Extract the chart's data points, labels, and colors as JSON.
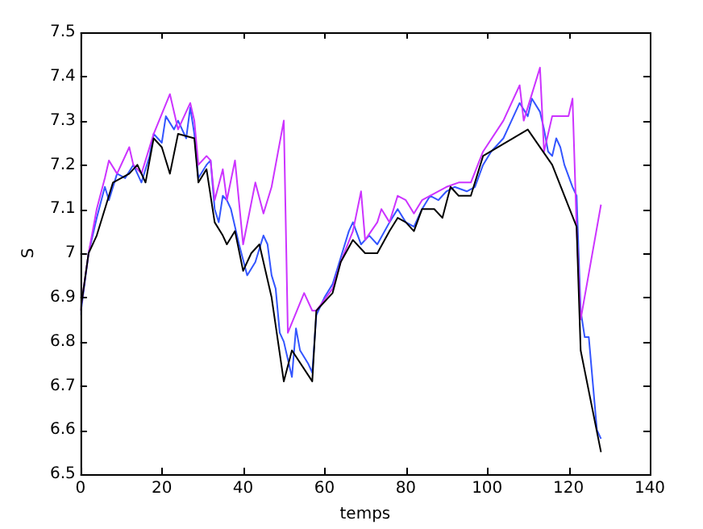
{
  "chart_data": {
    "type": "line",
    "xlabel": "temps",
    "ylabel": "S",
    "xlim": [
      0,
      140
    ],
    "xticks": [
      0,
      20,
      40,
      60,
      80,
      100,
      120,
      140
    ],
    "ylim": [
      6.5,
      7.5
    ],
    "yticks": [
      6.5,
      6.6,
      6.7,
      6.8,
      6.9,
      7,
      7.1,
      7.2,
      7.3,
      7.4,
      7.5
    ],
    "grid": false,
    "legend": false,
    "marker": "none",
    "line_style": "solid",
    "series": [
      {
        "color": "#000000",
        "x": [
          0,
          2,
          4,
          8,
          12,
          14,
          16,
          18,
          20,
          22,
          24,
          28,
          29,
          31,
          33,
          35,
          36,
          38,
          40,
          42,
          44,
          47,
          50,
          52,
          57,
          58,
          62,
          64,
          67,
          70,
          73,
          76,
          78,
          80,
          82,
          84,
          87,
          89,
          91,
          93,
          96,
          99,
          110,
          116,
          122,
          123,
          128
        ],
        "values": [
          6.87,
          7.0,
          7.04,
          7.16,
          7.18,
          7.2,
          7.16,
          7.26,
          7.24,
          7.18,
          7.27,
          7.26,
          7.16,
          7.19,
          7.07,
          7.04,
          7.02,
          7.05,
          6.96,
          7.0,
          7.02,
          6.9,
          6.71,
          6.78,
          6.71,
          6.87,
          6.91,
          6.98,
          7.03,
          7.0,
          7.0,
          7.05,
          7.08,
          7.07,
          7.05,
          7.1,
          7.1,
          7.08,
          7.15,
          7.13,
          7.13,
          7.22,
          7.28,
          7.2,
          7.06,
          6.78,
          6.55
        ]
      },
      {
        "color": "#cc33ff",
        "x": [
          0,
          2,
          4,
          6,
          7,
          9,
          12,
          13,
          15,
          18,
          22,
          24,
          27,
          28,
          29,
          31,
          32,
          33,
          35,
          36,
          38,
          40,
          43,
          45,
          47,
          50,
          51,
          55,
          57,
          58,
          62,
          64,
          67,
          69,
          70,
          73,
          74,
          76,
          78,
          80,
          82,
          84,
          90,
          93,
          96,
          99,
          104,
          108,
          109,
          113,
          114,
          116,
          120,
          121,
          122,
          123,
          128
        ],
        "values": [
          6.87,
          7.0,
          7.1,
          7.17,
          7.21,
          7.18,
          7.24,
          7.2,
          7.18,
          7.27,
          7.36,
          7.28,
          7.34,
          7.3,
          7.2,
          7.22,
          7.21,
          7.12,
          7.19,
          7.12,
          7.21,
          7.02,
          7.16,
          7.09,
          7.15,
          7.3,
          6.82,
          6.91,
          6.87,
          6.87,
          6.92,
          6.98,
          7.05,
          7.14,
          7.03,
          7.07,
          7.1,
          7.07,
          7.13,
          7.12,
          7.09,
          7.12,
          7.15,
          7.16,
          7.16,
          7.23,
          7.3,
          7.38,
          7.3,
          7.42,
          7.23,
          7.31,
          7.31,
          7.35,
          7.06,
          6.85,
          7.11
        ]
      },
      {
        "color": "#3355ff",
        "x": [
          0,
          2,
          4,
          6,
          7,
          9,
          11,
          13,
          15,
          17,
          18,
          20,
          21,
          23,
          24,
          26,
          27,
          28,
          29,
          31,
          32,
          33,
          34,
          35,
          36,
          37,
          39,
          41,
          43,
          45,
          46,
          47,
          48,
          49,
          50,
          52,
          53,
          54,
          56,
          57,
          58,
          60,
          62,
          63,
          64,
          66,
          67,
          69,
          71,
          73,
          76,
          78,
          80,
          82,
          84,
          86,
          88,
          90,
          92,
          95,
          97,
          99,
          101,
          104,
          106,
          108,
          110,
          111,
          113,
          114,
          115,
          116,
          117,
          118,
          119,
          121,
          122,
          123,
          124,
          125,
          127,
          128
        ],
        "values": [
          6.86,
          7.0,
          7.08,
          7.15,
          7.12,
          7.18,
          7.17,
          7.2,
          7.16,
          7.22,
          7.27,
          7.25,
          7.31,
          7.28,
          7.3,
          7.26,
          7.33,
          7.27,
          7.17,
          7.2,
          7.21,
          7.1,
          7.07,
          7.13,
          7.12,
          7.1,
          7.02,
          6.95,
          6.98,
          7.04,
          7.02,
          6.95,
          6.92,
          6.82,
          6.8,
          6.72,
          6.83,
          6.78,
          6.75,
          6.73,
          6.86,
          6.9,
          6.93,
          6.96,
          6.99,
          7.05,
          7.07,
          7.02,
          7.04,
          7.02,
          7.07,
          7.1,
          7.07,
          7.06,
          7.1,
          7.13,
          7.12,
          7.14,
          7.15,
          7.14,
          7.15,
          7.2,
          7.23,
          7.26,
          7.3,
          7.34,
          7.31,
          7.35,
          7.32,
          7.28,
          7.23,
          7.22,
          7.26,
          7.24,
          7.2,
          7.15,
          7.13,
          6.87,
          6.81,
          6.81,
          6.6,
          6.58
        ]
      }
    ]
  }
}
